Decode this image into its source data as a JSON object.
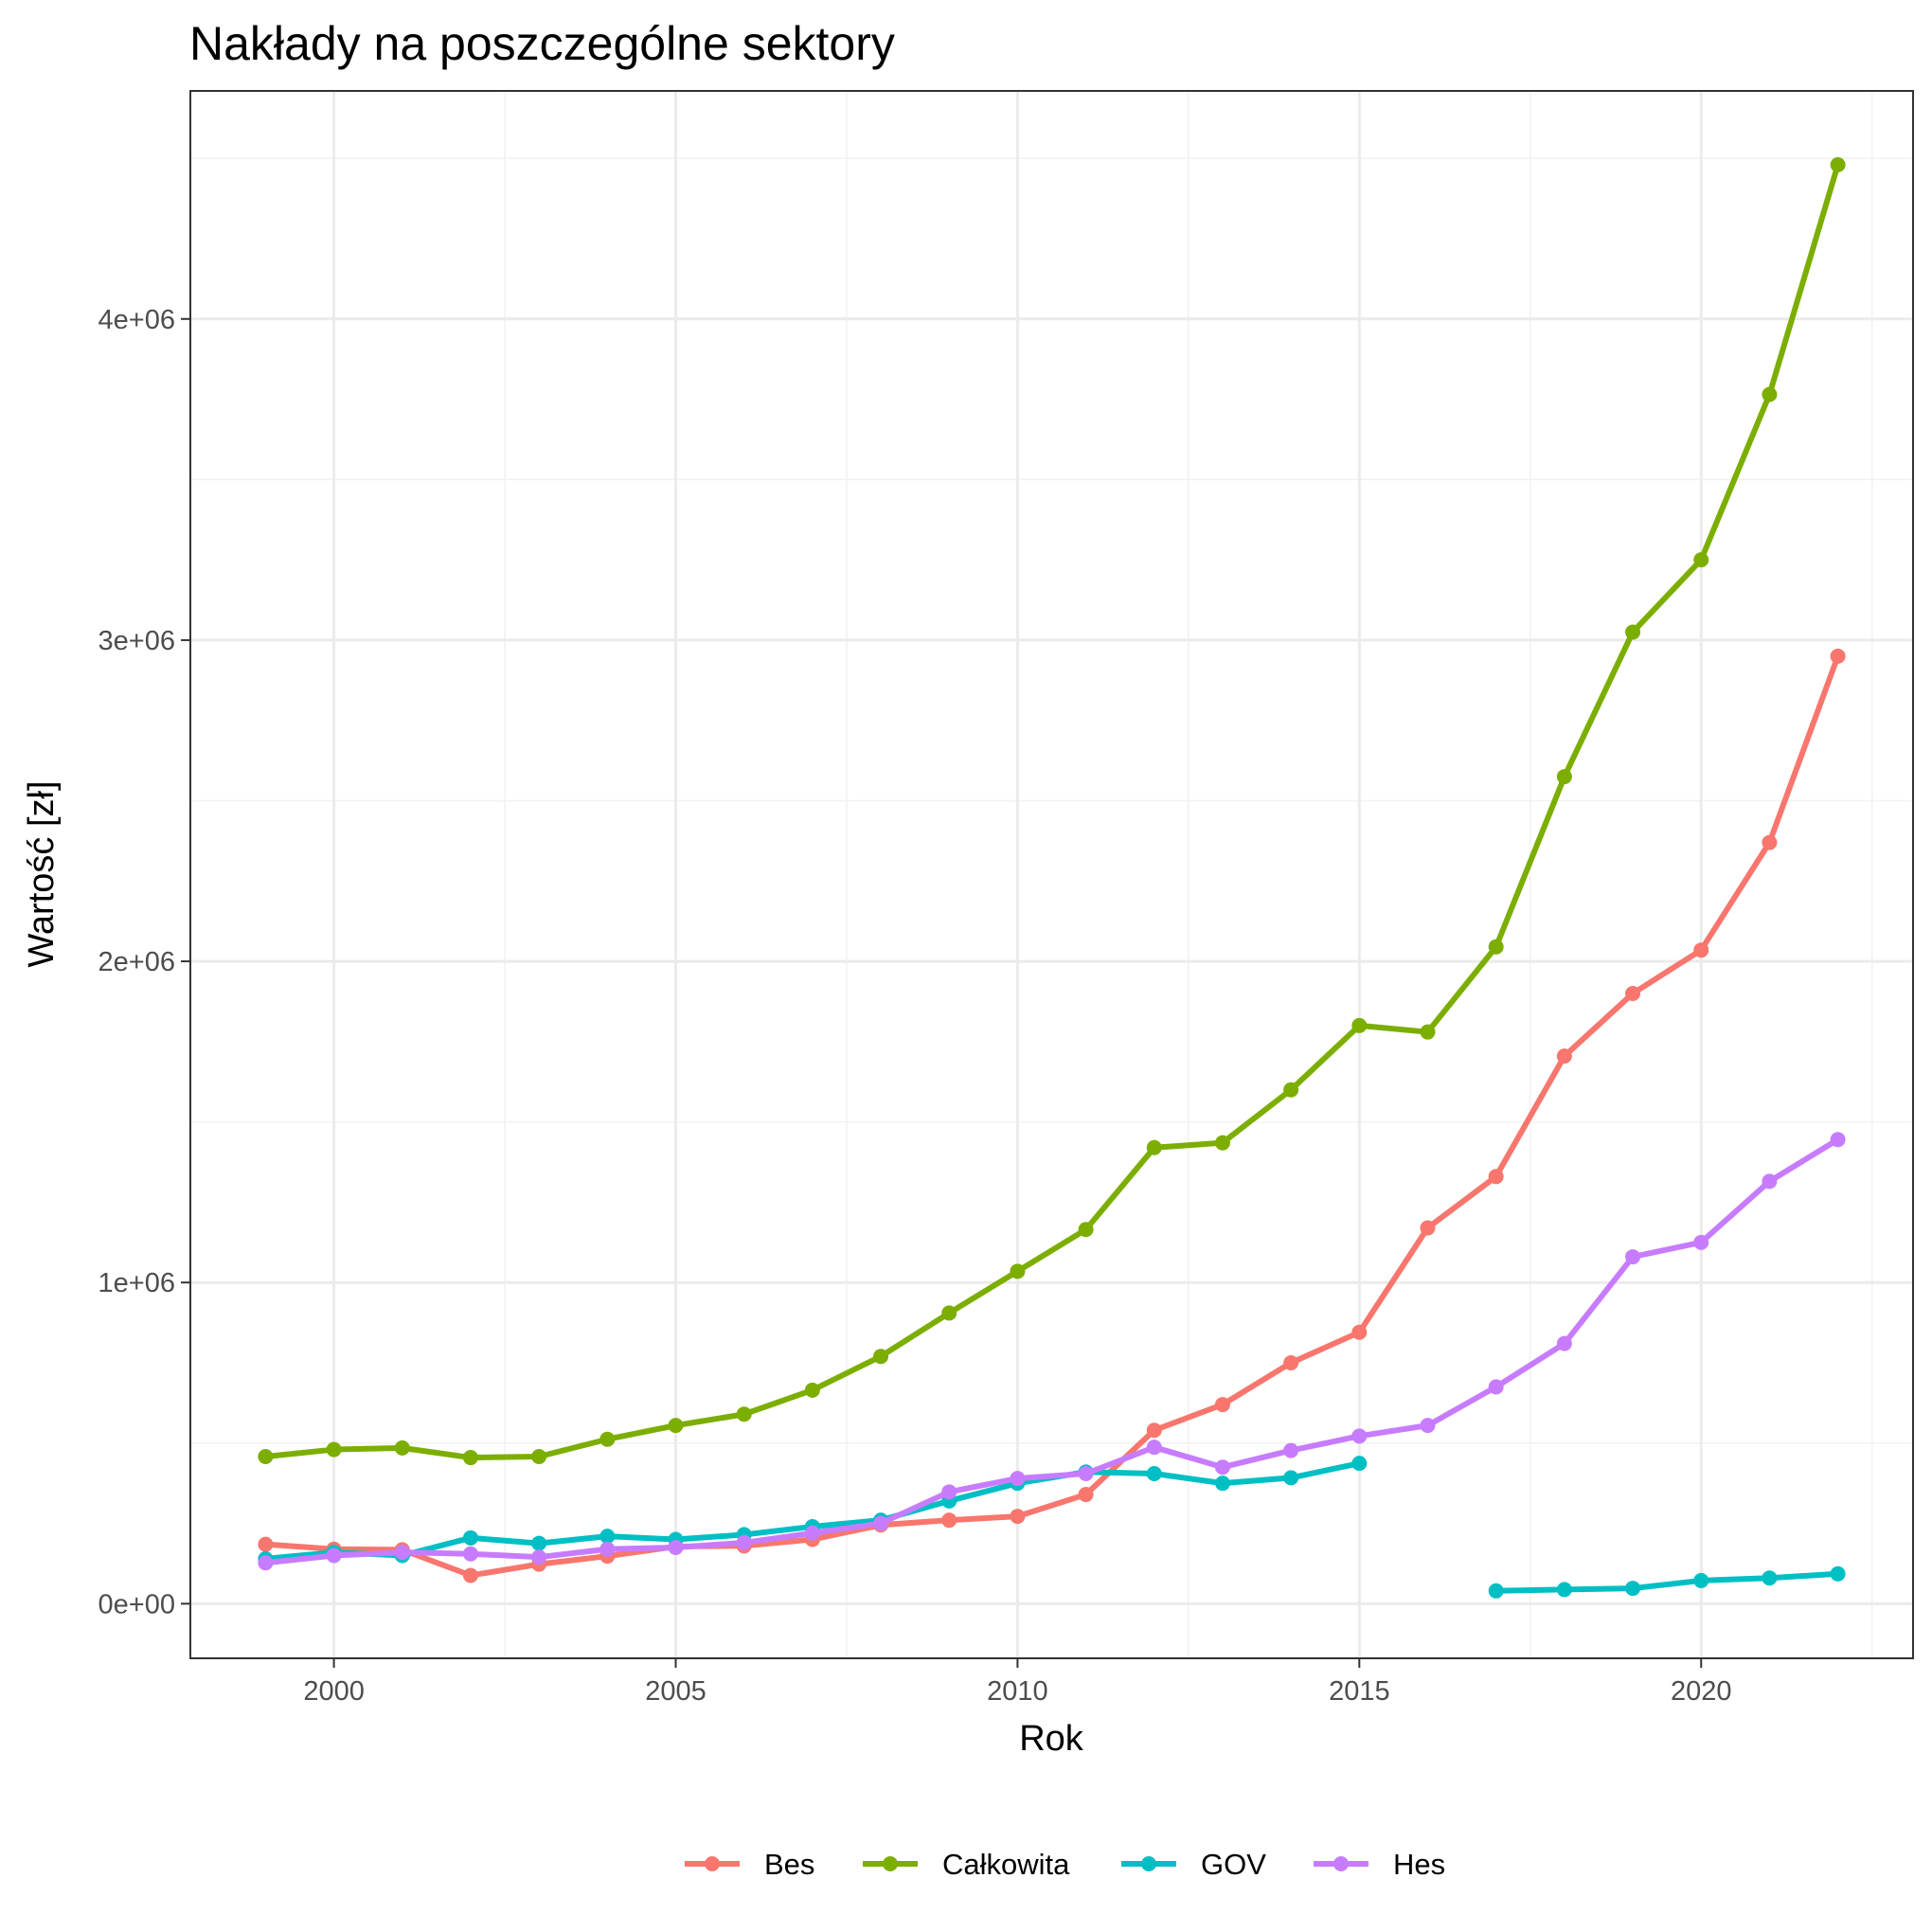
{
  "chart_data": {
    "type": "line",
    "title": "Nakłady na poszczególne sektory",
    "xlabel": "Rok",
    "ylabel": "Wartość [zł]",
    "xlim": [
      1997.9,
      2023.1
    ],
    "ylim": [
      -170000,
      4710000
    ],
    "x_ticks": [
      2000,
      2005,
      2010,
      2015,
      2020
    ],
    "x_tick_labels": [
      "2000",
      "2005",
      "2010",
      "2015",
      "2020"
    ],
    "y_ticks": [
      0,
      1000000,
      2000000,
      3000000,
      4000000
    ],
    "y_tick_labels": [
      "0e+00",
      "1e+06",
      "2e+06",
      "3e+06",
      "4e+06"
    ],
    "grid": true,
    "legend_position": "bottom",
    "series": [
      {
        "name": "Bes",
        "color": "#F8766D",
        "segments": [
          {
            "x": [
              1999,
              2000,
              2001,
              2002,
              2003,
              2004,
              2005,
              2006,
              2007,
              2008,
              2009,
              2010,
              2011,
              2012,
              2013,
              2014,
              2015,
              2016,
              2017,
              2018,
              2019,
              2020,
              2021,
              2022
            ],
            "y": [
              185000,
              170000,
              168000,
              88000,
              123000,
              148000,
              178000,
              180000,
              200000,
              245000,
              260000,
              272000,
              340000,
              540000,
              620000,
              750000,
              845000,
              1170000,
              1330000,
              1705000,
              1900000,
              2035000,
              2370000,
              2950000
            ]
          }
        ]
      },
      {
        "name": "Całkowita",
        "color": "#7CAE00",
        "segments": [
          {
            "x": [
              1999,
              2000,
              2001,
              2002,
              2003,
              2004,
              2005,
              2006,
              2007,
              2008,
              2009,
              2010,
              2011,
              2012,
              2013,
              2014,
              2015,
              2016,
              2017,
              2018,
              2019,
              2020,
              2021,
              2022
            ],
            "y": [
              458000,
              480000,
              485000,
              455000,
              458000,
              512000,
              555000,
              590000,
              665000,
              770000,
              905000,
              1035000,
              1165000,
              1420000,
              1435000,
              1600000,
              1800000,
              1780000,
              2045000,
              2575000,
              3025000,
              3250000,
              3765000,
              4480000
            ]
          }
        ]
      },
      {
        "name": "GOV",
        "color": "#00BFC4",
        "segments": [
          {
            "x": [
              1999,
              2000,
              2001,
              2002,
              2003,
              2004,
              2005,
              2006,
              2007,
              2008,
              2009,
              2010,
              2011,
              2012,
              2013,
              2014,
              2015
            ],
            "y": [
              140000,
              160000,
              150000,
              205000,
              188000,
              210000,
              200000,
              215000,
              240000,
              260000,
              320000,
              375000,
              410000,
              405000,
              375000,
              392000,
              437000
            ]
          },
          {
            "x": [
              2017,
              2018,
              2019,
              2020,
              2021,
              2022
            ],
            "y": [
              40000,
              44000,
              48000,
              72000,
              80000,
              93000
            ]
          }
        ]
      },
      {
        "name": "Hes",
        "color": "#C77CFF",
        "segments": [
          {
            "x": [
              1999,
              2000,
              2001,
              2002,
              2003,
              2004,
              2005,
              2006,
              2007,
              2008,
              2009,
              2010,
              2011,
              2012,
              2013,
              2014,
              2015,
              2016,
              2017,
              2018,
              2019,
              2020,
              2021,
              2022
            ],
            "y": [
              127000,
              150000,
              160000,
              155000,
              145000,
              170000,
              175000,
              190000,
              220000,
              250000,
              348000,
              390000,
              405000,
              487000,
              425000,
              477000,
              522000,
              555000,
              675000,
              810000,
              1080000,
              1125000,
              1315000,
              1445000
            ]
          }
        ]
      }
    ]
  }
}
